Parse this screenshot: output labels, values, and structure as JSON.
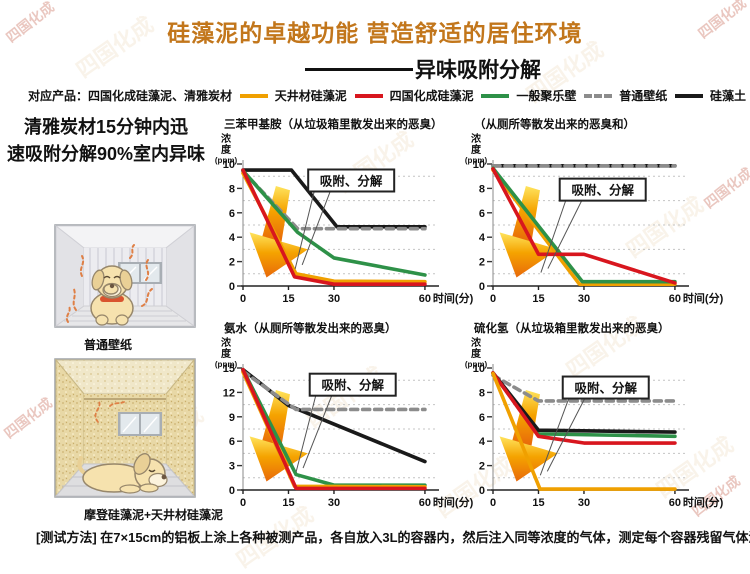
{
  "watermark": {
    "text": "四国化成"
  },
  "header": {
    "title": "硅藻泥的卓越功能 营造舒适的居住环境",
    "subtitle": "异味吸附分解",
    "title_color": "#C2761B"
  },
  "legend": {
    "prefix": "对应产品：四国化成硅藻泥、清雅炭材",
    "items": [
      {
        "label": "天井材硅藻泥",
        "color": "#F0A000",
        "dash": false
      },
      {
        "label": "四国化成硅藻泥",
        "color": "#D8161E",
        "dash": false
      },
      {
        "label": "一般聚乐壁",
        "color": "#2E9148",
        "dash": false
      },
      {
        "label": "普通壁纸",
        "color": "#8C8C8C",
        "dash": true
      },
      {
        "label": "硅藻土",
        "color": "#1A1A1A",
        "dash": false
      }
    ]
  },
  "left_panel": {
    "headline": "清雅炭材15分钟内迅\n速吸附分解90%室内异味",
    "room1_caption": "普通壁纸",
    "room2_caption": "摩登硅藻泥+天井材硅藻泥"
  },
  "footer": {
    "test_method": "[测试方法] 在7×15cm的铝板上涂上各种被测产品，各自放入3L的容器内，然后注入同等浓度的气体，测定每个容器残留气体浓度。"
  },
  "chart_data": [
    {
      "type": "line",
      "title": "三苯甲基胺（从垃圾箱里散发出来的恶臭）",
      "ylabel": "浓度",
      "yunit": "(ppm)",
      "xlabel": "时间(分)",
      "ylim": [
        0,
        10
      ],
      "yticks": [
        0,
        2,
        4,
        6,
        8,
        10
      ],
      "xticks": [
        0,
        15,
        30,
        60
      ],
      "xlim": [
        0,
        62
      ],
      "annotation": {
        "label": "吸附、分解",
        "box_x": 21.5,
        "box_y": 9.55,
        "target_x": 17.2,
        "target_y": 1.4
      },
      "series": [
        {
          "name": "硅藻土",
          "color": "#1A1A1A",
          "points": [
            [
              0,
              9.5
            ],
            [
              16,
              9.5
            ],
            [
              31,
              4.85
            ],
            [
              60,
              4.85
            ]
          ]
        },
        {
          "name": "普通壁纸",
          "color": "#8C8C8C",
          "dash": "7 5",
          "points": [
            [
              0,
              9.4
            ],
            [
              18,
              4.7
            ],
            [
              60,
              4.7
            ]
          ]
        },
        {
          "name": "一般聚乐壁",
          "color": "#2E9148",
          "points": [
            [
              0,
              9.45
            ],
            [
              18,
              4.4
            ],
            [
              30,
              2.3
            ],
            [
              60,
              0.9
            ]
          ]
        },
        {
          "name": "天井材硅藻泥",
          "color": "#F0A000",
          "points": [
            [
              0,
              9.25
            ],
            [
              17.5,
              1.0
            ],
            [
              30,
              0.4
            ],
            [
              60,
              0.35
            ]
          ]
        },
        {
          "name": "四国化成硅藻泥",
          "color": "#D8161E",
          "points": [
            [
              0,
              9.5
            ],
            [
              17,
              0.75
            ],
            [
              30,
              0.15
            ],
            [
              60,
              0.15
            ]
          ]
        }
      ]
    },
    {
      "type": "line",
      "title": "（从厕所等散发出来的恶臭和）",
      "ylabel": "浓度",
      "yunit": "(ppm)",
      "xlabel": "时间(分)",
      "ylim": [
        0,
        10
      ],
      "yticks": [
        0,
        2,
        4,
        6,
        8,
        10
      ],
      "xticks": [
        0,
        15,
        30,
        60
      ],
      "xlim": [
        0,
        62
      ],
      "annotation": {
        "label": "吸附、分解",
        "box_x": 22,
        "box_y": 8.8,
        "target_x": 15.8,
        "target_y": 1.1
      },
      "series": [
        {
          "name": "硅藻土",
          "color": "#1A1A1A",
          "points": [
            [
              0,
              9.85
            ],
            [
              60,
              9.85
            ]
          ]
        },
        {
          "name": "普通壁纸",
          "color": "#8C8C8C",
          "dash": "7 5",
          "points": [
            [
              0,
              9.85
            ],
            [
              60,
              9.85
            ]
          ]
        },
        {
          "name": "天井材硅藻泥",
          "color": "#F0A000",
          "points": [
            [
              0,
              9.5
            ],
            [
              28.5,
              0.15
            ],
            [
              60,
              0.15
            ]
          ]
        },
        {
          "name": "一般聚乐壁",
          "color": "#2E9148",
          "points": [
            [
              0,
              9.65
            ],
            [
              29.5,
              0.35
            ],
            [
              60,
              0.35
            ]
          ]
        },
        {
          "name": "四国化成硅藻泥",
          "color": "#D8161E",
          "points": [
            [
              0,
              9.6
            ],
            [
              15,
              2.6
            ],
            [
              30,
              2.6
            ],
            [
              60,
              0.25
            ]
          ]
        }
      ]
    },
    {
      "type": "line",
      "title": "氨水（从厕所等散发出来的恶臭）",
      "ylabel": "浓度",
      "yunit": "(ppm)",
      "xlabel": "时间(分)",
      "ylim": [
        0,
        15
      ],
      "yticks": [
        0,
        3,
        6,
        9,
        12,
        15
      ],
      "xticks": [
        0,
        15,
        30,
        60
      ],
      "xlim": [
        0,
        62
      ],
      "annotation": {
        "label": "吸附、分解",
        "box_x": 22,
        "box_y": 14.3,
        "target_x": 17.5,
        "target_y": 2.2
      },
      "series": [
        {
          "name": "硅藻土",
          "color": "#1A1A1A",
          "points": [
            [
              0,
              14.8
            ],
            [
              15,
              10.4
            ],
            [
              60,
              3.5
            ]
          ]
        },
        {
          "name": "普通壁纸",
          "color": "#8C8C8C",
          "dash": "7 5",
          "points": [
            [
              0,
              14.6
            ],
            [
              17.5,
              9.9
            ],
            [
              60,
              9.9
            ]
          ]
        },
        {
          "name": "一般聚乐壁",
          "color": "#2E9148",
          "points": [
            [
              0,
              14.8
            ],
            [
              17.5,
              1.9
            ],
            [
              30,
              0.6
            ],
            [
              60,
              0.6
            ]
          ]
        },
        {
          "name": "天井材硅藻泥",
          "color": "#F0A000",
          "points": [
            [
              0,
              14.5
            ],
            [
              17,
              0.45
            ],
            [
              60,
              0.4
            ]
          ]
        },
        {
          "name": "四国化成硅藻泥",
          "color": "#D8161E",
          "points": [
            [
              0,
              14.8
            ],
            [
              17.5,
              0.2
            ],
            [
              60,
              0.2
            ]
          ]
        }
      ]
    },
    {
      "type": "line",
      "title": "硫化氢（从垃圾箱里散发出来的恶臭）",
      "ylabel": "浓度",
      "yunit": "(ppm)",
      "xlabel": "时间(分)",
      "ylim": [
        0,
        10
      ],
      "yticks": [
        0,
        2,
        4,
        6,
        8,
        10
      ],
      "xticks": [
        0,
        15,
        30,
        60
      ],
      "xlim": [
        0,
        62
      ],
      "annotation": {
        "label": "吸附、分解",
        "box_x": 23,
        "box_y": 9.3,
        "target_x": 15.6,
        "target_y": 1.2
      },
      "series": [
        {
          "name": "普通壁纸",
          "color": "#8C8C8C",
          "dash": "7 5",
          "points": [
            [
              0,
              9.4
            ],
            [
              15,
              7.3
            ],
            [
              60,
              7.3
            ]
          ]
        },
        {
          "name": "一般聚乐壁",
          "color": "#2E9148",
          "points": [
            [
              0,
              9.55
            ],
            [
              15,
              4.6
            ],
            [
              60,
              4.4
            ]
          ]
        },
        {
          "name": "硅藻土",
          "color": "#1A1A1A",
          "points": [
            [
              0,
              9.6
            ],
            [
              15,
              4.9
            ],
            [
              60,
              4.75
            ]
          ]
        },
        {
          "name": "四国化成硅藻泥",
          "color": "#D8161E",
          "points": [
            [
              0,
              9.6
            ],
            [
              15,
              4.4
            ],
            [
              30,
              3.85
            ],
            [
              60,
              3.85
            ]
          ]
        },
        {
          "name": "天井材硅藻泥",
          "color": "#F0A000",
          "points": [
            [
              0,
              9.55
            ],
            [
              15.5,
              0.08
            ],
            [
              60,
              0.08
            ]
          ]
        }
      ]
    }
  ]
}
